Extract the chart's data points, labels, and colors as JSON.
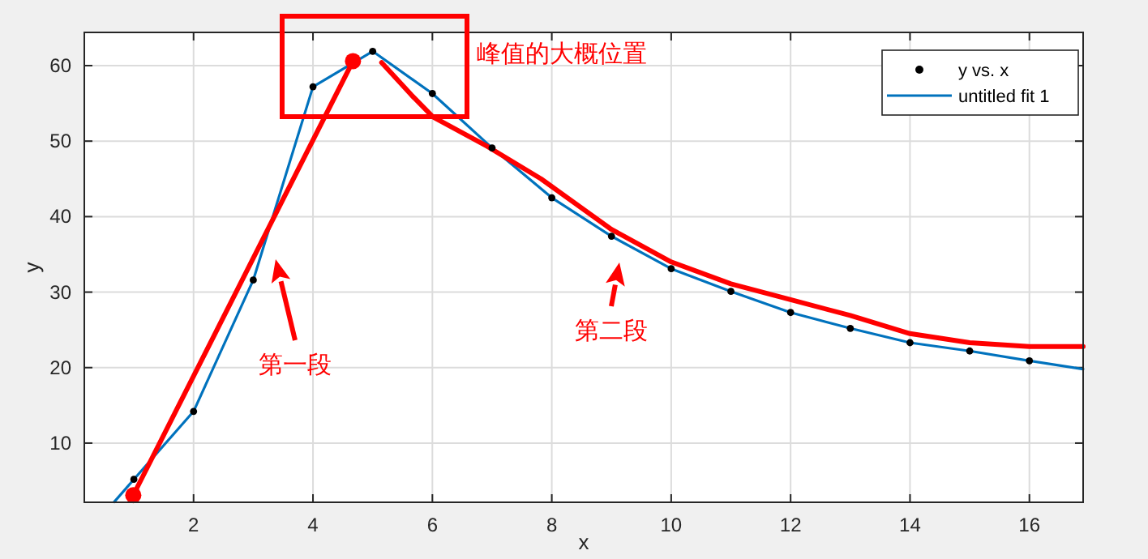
{
  "chart_data": {
    "type": "line",
    "xlabel": "x",
    "ylabel": "y",
    "xlim": [
      0.17,
      16.9
    ],
    "ylim": [
      2.16,
      64.4
    ],
    "xticks": [
      2,
      4,
      6,
      8,
      10,
      12,
      14,
      16
    ],
    "yticks": [
      10,
      20,
      30,
      40,
      50,
      60
    ],
    "grid": true,
    "legend": "top right",
    "series": [
      {
        "name": "y vs. x",
        "type": "scatter",
        "marker": "circle",
        "color": "#000000",
        "x": [
          1,
          2,
          3,
          4,
          5,
          6,
          7,
          8,
          9,
          10,
          11,
          12,
          13,
          14,
          15,
          16
        ],
        "values": [
          5.2,
          14.2,
          31.6,
          57.2,
          61.9,
          56.3,
          49.1,
          42.5,
          37.4,
          33.1,
          30.1,
          27.3,
          25.2,
          23.3,
          22.2,
          20.9
        ]
      },
      {
        "name": "untitled fit 1",
        "marker": "none",
        "color": "#0072bd",
        "x": [
          0.67,
          1,
          2,
          3,
          4,
          5,
          6,
          7,
          8,
          9,
          10,
          11,
          12,
          13,
          14,
          15,
          16,
          16.9
        ],
        "values": [
          2.2,
          5.2,
          14.2,
          31.6,
          57.2,
          61.9,
          56.3,
          49.1,
          42.5,
          37.4,
          33.1,
          30.1,
          27.3,
          25.2,
          23.3,
          22.2,
          20.9,
          19.8
        ]
      },
      {
        "marker": "circle",
        "color": "#ff0000",
        "x": [
          0.99,
          4.67
        ],
        "values": [
          3.1,
          60.6
        ]
      },
      {
        "marker": "none",
        "color": "#ff0000",
        "x": [
          5.15,
          5.65,
          6.01,
          6.92,
          7.82,
          9.0,
          10.0,
          11.0,
          12.0,
          13.0,
          14.0,
          15.0,
          16.0,
          16.9
        ],
        "values": [
          60.4,
          56.1,
          53.2,
          49.3,
          45.0,
          38.3,
          34.0,
          31.1,
          29.0,
          26.9,
          24.5,
          23.3,
          22.8,
          22.8
        ]
      }
    ],
    "annotations": [
      "峰值的大概位置",
      "第一段",
      "第二段"
    ]
  }
}
